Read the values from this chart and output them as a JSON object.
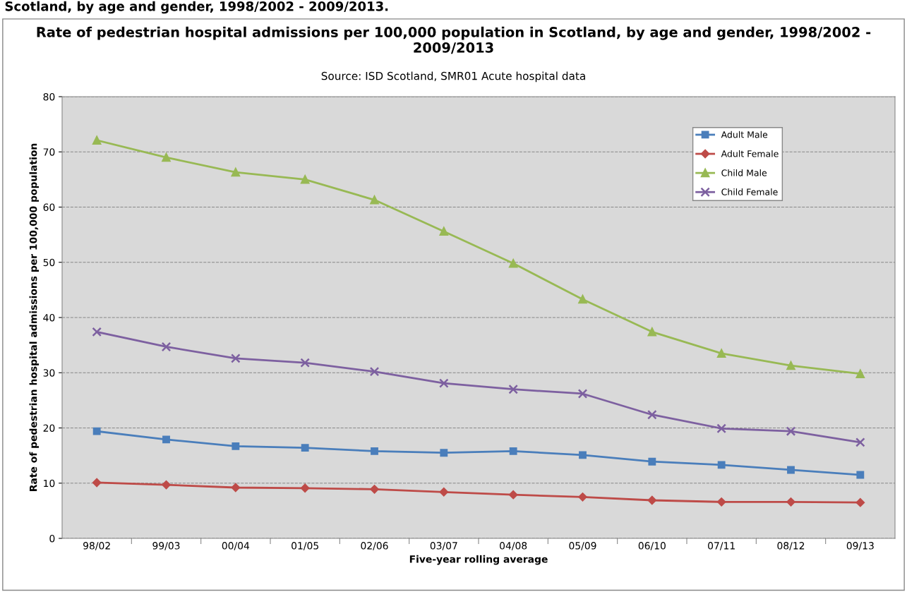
{
  "chart_data": {
    "type": "line",
    "title": "Rate of pedestrian hospital admissions per 100,000 population in Scotland, by age and gender, 1998/2002 - 2009/2013",
    "subtitle": "Source: ISD Scotland, SMR01 Acute hospital data",
    "annotations": [
      "Scotland, by age and gender, 1998/2002 - 2009/2013."
    ],
    "xlabel": "Five-year rolling average",
    "ylabel": "Rate of pedestrian hospital admissions per 100,000 population",
    "categories": [
      "98/02",
      "99/03",
      "00/04",
      "01/05",
      "02/06",
      "03/07",
      "04/08",
      "05/09",
      "06/10",
      "07/11",
      "08/12",
      "09/13"
    ],
    "series": [
      {
        "name": "Adult Male",
        "color": "#4a7ebb",
        "marker": "square",
        "values": [
          19.4,
          17.9,
          16.7,
          16.4,
          15.8,
          15.5,
          15.8,
          15.1,
          13.9,
          13.3,
          12.4,
          11.5
        ]
      },
      {
        "name": "Adult Female",
        "color": "#be4b48",
        "marker": "diamond",
        "values": [
          10.1,
          9.7,
          9.2,
          9.1,
          8.9,
          8.4,
          7.9,
          7.5,
          6.9,
          6.6,
          6.6,
          6.5
        ]
      },
      {
        "name": "Child Male",
        "color": "#98b954",
        "marker": "triangle",
        "values": [
          72.1,
          69.0,
          66.3,
          65.0,
          61.3,
          55.6,
          49.8,
          43.3,
          37.4,
          33.5,
          31.3,
          29.8
        ]
      },
      {
        "name": "Child Female",
        "color": "#7d60a0",
        "marker": "cross",
        "values": [
          37.4,
          34.7,
          32.6,
          31.8,
          30.2,
          28.1,
          27.0,
          26.2,
          22.4,
          19.9,
          19.4,
          17.4
        ]
      }
    ],
    "ylim": [
      0,
      80
    ],
    "yticks": [
      0,
      10,
      20,
      30,
      40,
      50,
      60,
      70,
      80
    ],
    "grid": "y",
    "legend": "top right",
    "line_style": "solid"
  }
}
